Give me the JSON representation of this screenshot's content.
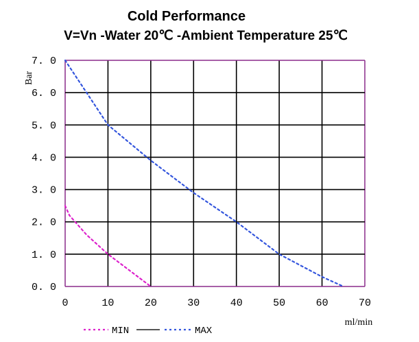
{
  "chart_data": {
    "type": "line",
    "title": "Cold Performance",
    "subtitle": "V=Vn -Water 20℃ -Ambient Temperature 25℃",
    "ylabel": "Bar",
    "xlabel": "ml/min",
    "xlim": [
      0,
      70
    ],
    "ylim": [
      0,
      7
    ],
    "x_ticks": [
      0,
      10,
      20,
      30,
      40,
      50,
      60,
      70
    ],
    "y_ticks": [
      0,
      1,
      2,
      3,
      4,
      5,
      6,
      7
    ],
    "x_tick_labels": [
      "0",
      "10",
      "20",
      "30",
      "40",
      "50",
      "60",
      "70"
    ],
    "y_tick_labels": [
      "0. 0",
      "1. 0",
      "2. 0",
      "3. 0",
      "4. 0",
      "5. 0",
      "6. 0",
      "7. 0"
    ],
    "grid": true,
    "legend_placement": "bottom-left",
    "legend": [
      {
        "label": "MIN",
        "style": "dashed",
        "color": "#dd22cc"
      },
      {
        "label": "",
        "style": "solid",
        "color": "#555555"
      },
      {
        "label": "MAX",
        "style": "dashed",
        "color": "#3355dd"
      }
    ],
    "series": [
      {
        "name": "MIN",
        "color": "#dd22cc",
        "x": [
          0,
          1,
          5,
          10,
          15,
          20
        ],
        "y": [
          2.5,
          2.2,
          1.6,
          1.0,
          0.5,
          0.0
        ]
      },
      {
        "name": "MAX",
        "color": "#3355dd",
        "x": [
          0,
          5,
          10,
          20,
          30,
          40,
          50,
          60,
          65
        ],
        "y": [
          7.0,
          6.0,
          5.0,
          3.9,
          2.9,
          2.0,
          1.0,
          0.3,
          0.0
        ]
      }
    ]
  }
}
